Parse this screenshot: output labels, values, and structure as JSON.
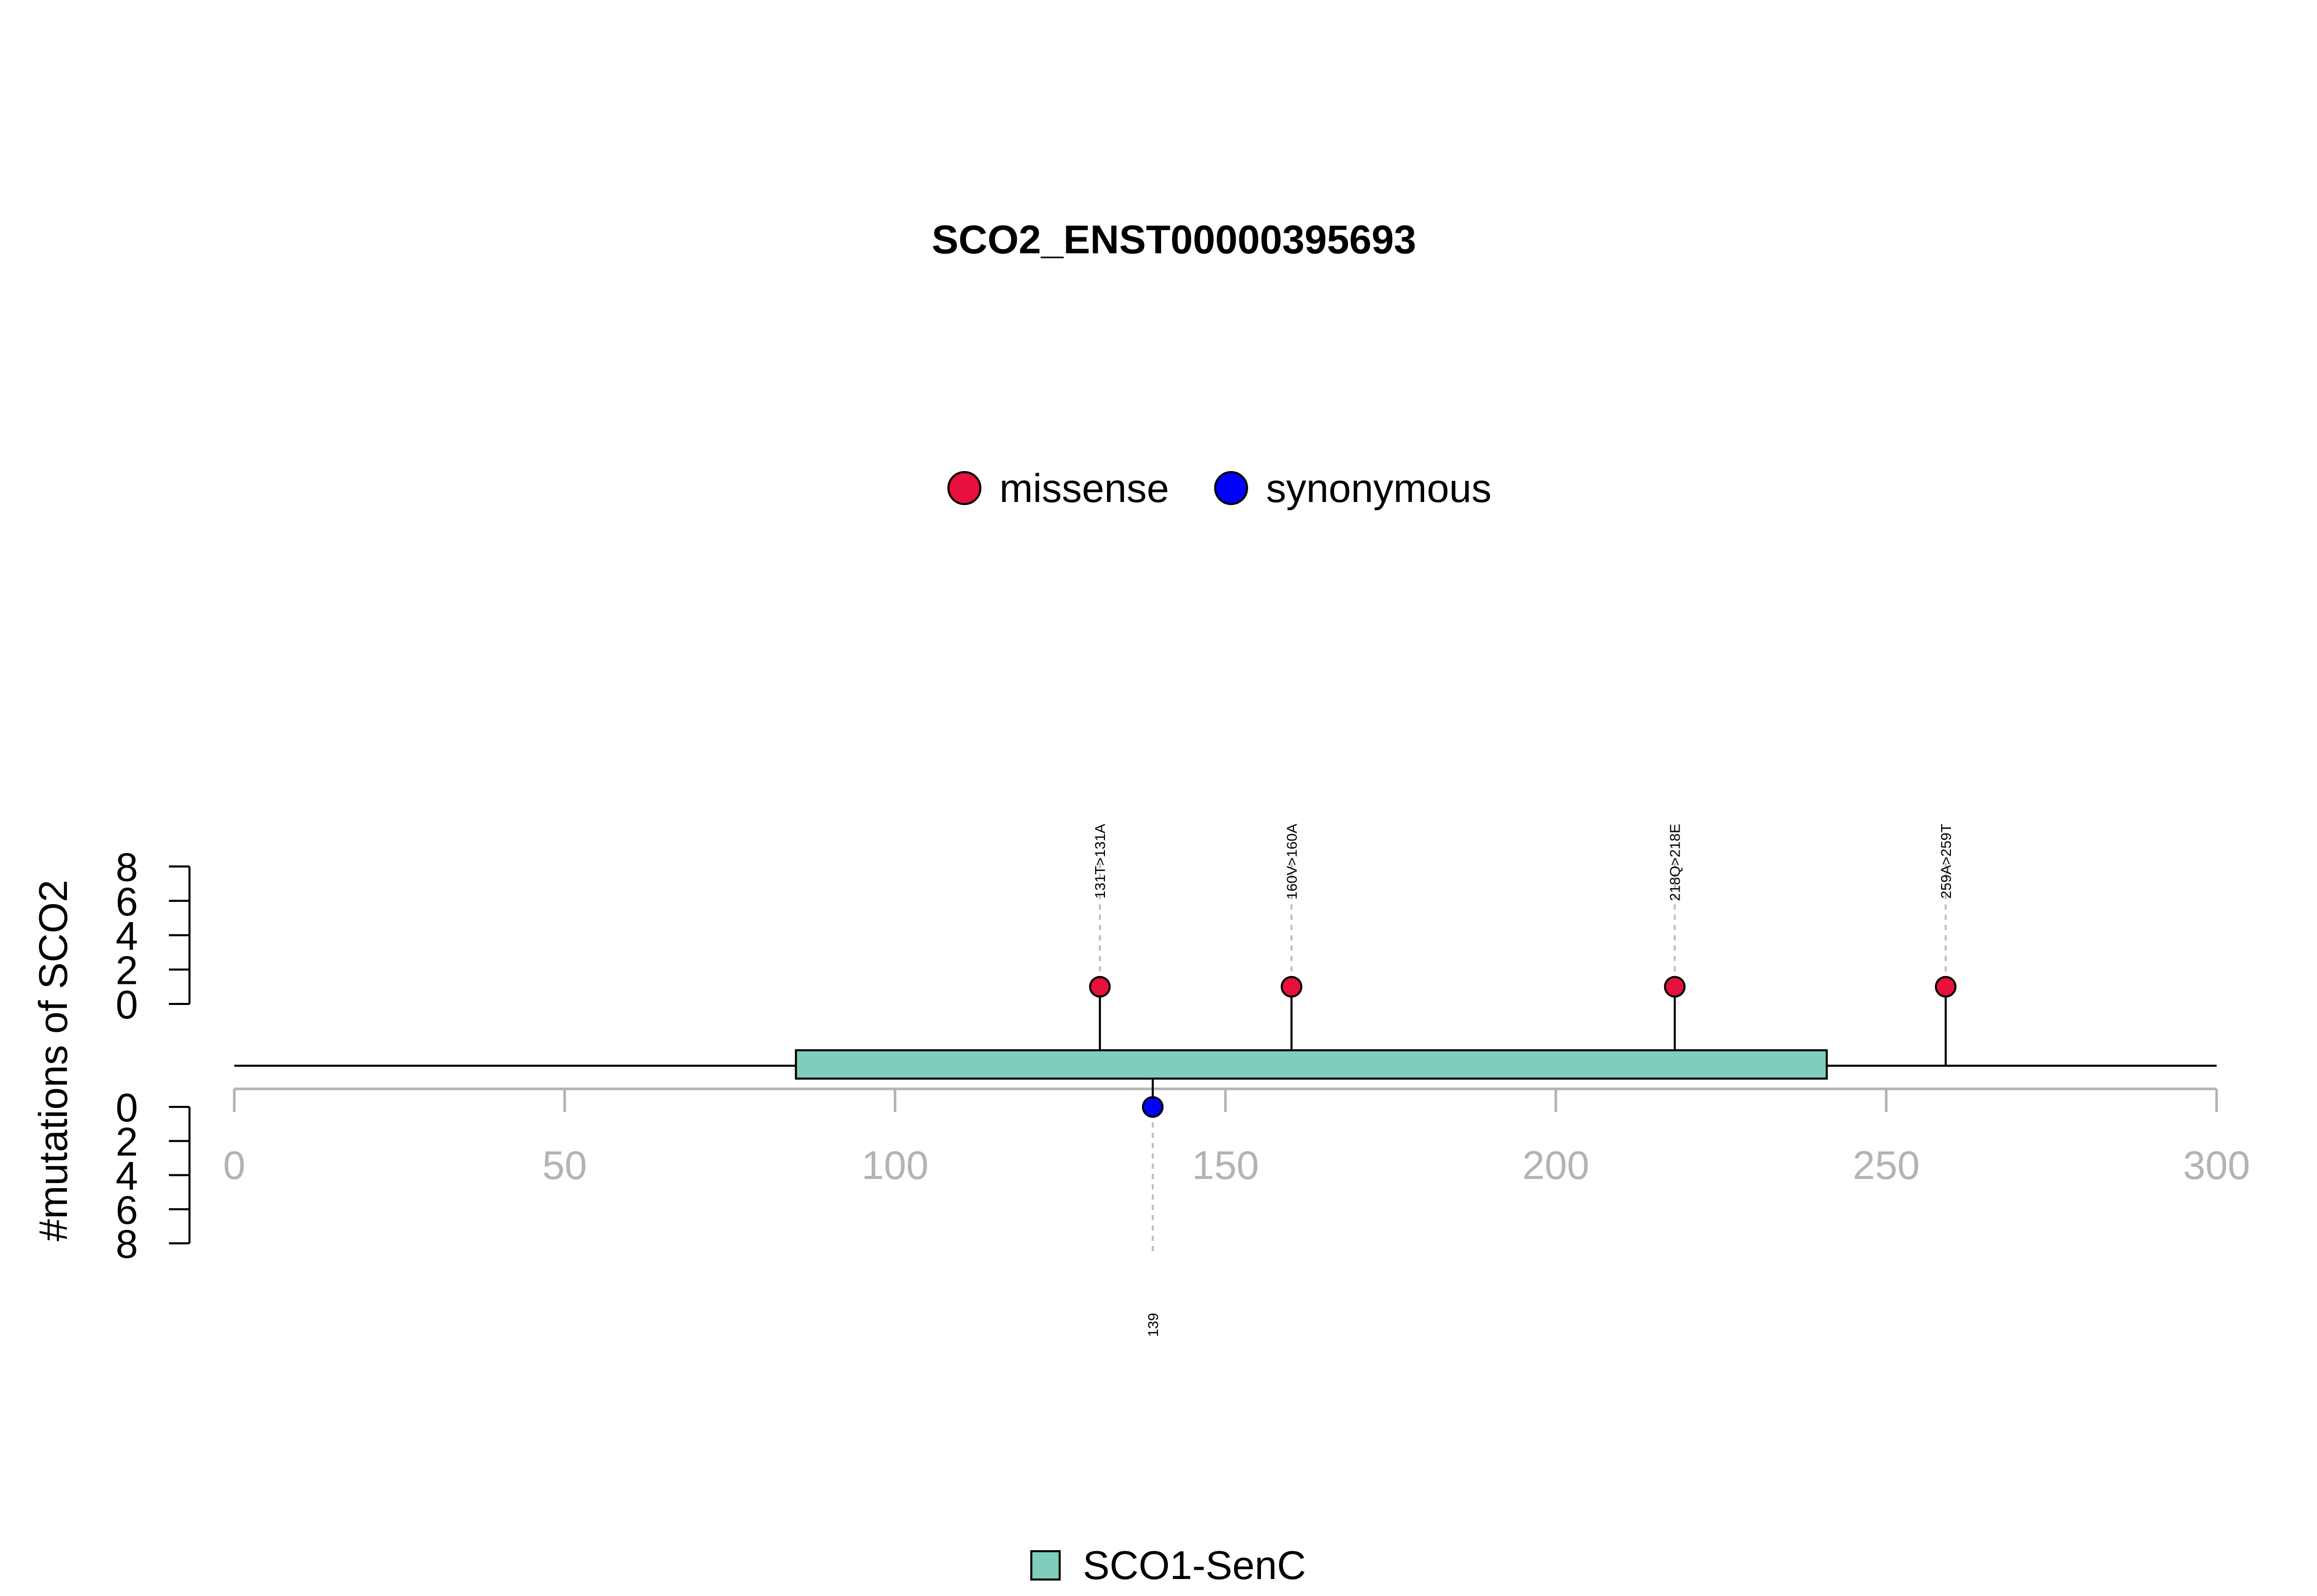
{
  "chart_data": {
    "type": "lollipop",
    "title": "SCO2_ENST00000395693",
    "ylabel": "#mutations of SCO2",
    "xlim": [
      0,
      300
    ],
    "x_ticks": [
      0,
      50,
      100,
      150,
      200,
      250,
      300
    ],
    "y_ticks": [
      0,
      2,
      4,
      6,
      8
    ],
    "legend": {
      "mutation_types": [
        {
          "name": "missense",
          "color": "#E8103C"
        },
        {
          "name": "synonymous",
          "color": "#0000FF"
        }
      ],
      "domains": [
        {
          "name": "SCO1-SenC",
          "color": "#7FCDBB"
        }
      ]
    },
    "domains": [
      {
        "name": "SCO1-SenC",
        "start": 85,
        "end": 241
      }
    ],
    "mutations": [
      {
        "position": 131,
        "count": 1,
        "type": "missense",
        "label": "131T>131A"
      },
      {
        "position": 160,
        "count": 1,
        "type": "missense",
        "label": "160V>160A"
      },
      {
        "position": 218,
        "count": 1,
        "type": "missense",
        "label": "218Q>218E"
      },
      {
        "position": 259,
        "count": 1,
        "type": "missense",
        "label": "259A>259T"
      },
      {
        "position": 139,
        "count": 1,
        "type": "synonymous",
        "label": "139"
      }
    ]
  }
}
